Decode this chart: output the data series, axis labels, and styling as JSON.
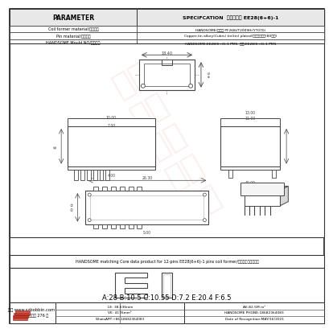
{
  "title": "SPECIFCATION  品名： 换升 EE28(6+6)-1",
  "param_col": "PARAMETER",
  "spec_col": "SPECIFCATION  品名： 换升 EE28(6+6)-1",
  "rows": [
    [
      "Coil former material/线圈材料",
      "HANDSOME(标方） PF268i/T2009Hi/YT070i"
    ],
    [
      "Pin material/端子材料",
      "Copper-tin allory(Cubrs) tin(tin) plated/铜合锦销锅分(80分气)"
    ],
    [
      "HANDSOME Mould NO/模具编号",
      "HANDSOME-EE28(6+6)-1 PMS  换升-EE28(6+6)-1 PMS"
    ]
  ],
  "dim_text": "A:28 B:10.5 C:10.55 D:7.2 E:20.4 F:6.5",
  "footer_text1": "换升 www.szbobbin.com",
  "footer_text2": "东常市石排下沙大道 276 号",
  "footer_col2_1": "LE: 38.636mm",
  "footer_col2_2": "VE: 4176mm³",
  "footer_col2_3": "WhatsAPP:+86-18682364083",
  "footer_col3_1": "AE:82.5M m²",
  "footer_col3_2": "HANDSOME PHONE:18682364083",
  "footer_col3_3": "Date of Recognition:MAY/16/2021",
  "match_text": "HANDSOME matching Core data product for 12-pins EE28(6+6)-1 pins coil former/换升磁芯匹配数据表",
  "bg_color": "#f0f0f0",
  "border_color": "#333333",
  "line_color": "#444444",
  "dim_color": "#555555",
  "red_color": "#c0392b",
  "logo_red": "#c0392b"
}
